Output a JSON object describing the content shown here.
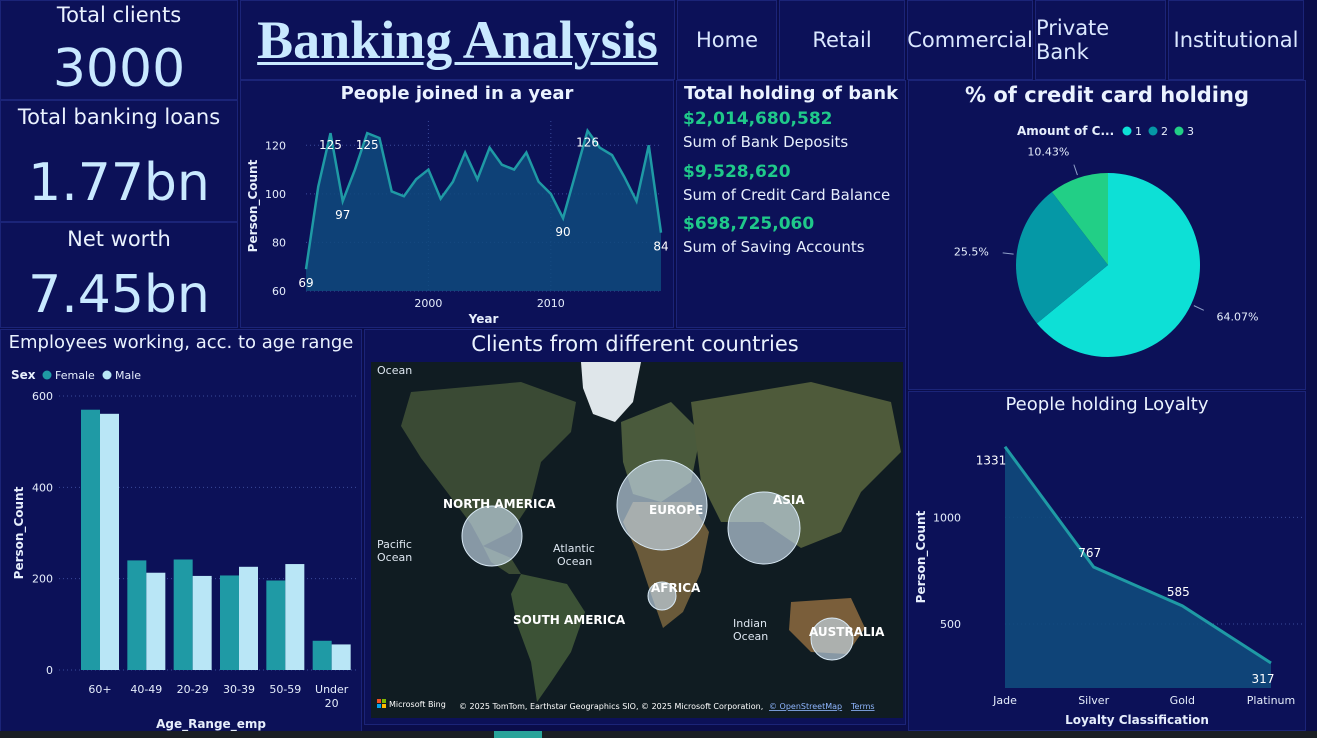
{
  "kpis": {
    "total_clients_label": "Total clients",
    "total_clients_value": "3000",
    "loans_label": "Total banking loans",
    "loans_value": "1.77bn",
    "networth_label": "Net worth",
    "networth_value": "7.45bn"
  },
  "header": {
    "title": "Banking Analysis"
  },
  "nav": [
    "Home",
    "Retail",
    "Commercial",
    "Private Bank",
    "Institutional"
  ],
  "holding": {
    "title": "Total holding of bank",
    "items": [
      {
        "value": "$2,014,680,582",
        "label": "Sum of Bank Deposits"
      },
      {
        "value": "$9,528,620",
        "label": "Sum of Credit Card Balance"
      },
      {
        "value": "$698,725,060",
        "label": "Sum of Saving Accounts"
      }
    ]
  },
  "map": {
    "title": "Clients from different countries",
    "labels": [
      "NORTH AMERICA",
      "EUROPE",
      "ASIA",
      "AFRICA",
      "SOUTH AMERICA",
      "AUSTRALIA"
    ],
    "oceans": [
      "Ocean",
      "Pacific",
      "Ocean",
      "Atlantic",
      "Ocean",
      "Indian",
      "Ocean"
    ],
    "bing": "Microsoft Bing",
    "attribution": "© 2025 TomTom, Earthstar Geographics SIO, © 2025 Microsoft Corporation,",
    "osm_link": "© OpenStreetMap",
    "terms_link": "Terms"
  },
  "colors": {
    "teal": "#1f9aa5",
    "light": "#b9e6f6",
    "area": "#0f4a7c",
    "pie1": "#0de0d6",
    "pie2": "#0598a6",
    "pie3": "#22cf86",
    "green": "#1fc98a"
  },
  "chart_data": [
    {
      "type": "area",
      "title": "People joined in a year",
      "xlabel": "Year",
      "ylabel": "Person_Count",
      "xticks": [
        "2000",
        "2010"
      ],
      "yticks": [
        "60",
        "80",
        "100",
        "120"
      ],
      "ylim": [
        60,
        130
      ],
      "x": [
        1990,
        1991,
        1992,
        1993,
        1994,
        1995,
        1996,
        1997,
        1998,
        1999,
        2000,
        2001,
        2002,
        2003,
        2004,
        2005,
        2006,
        2007,
        2008,
        2009,
        2010,
        2011,
        2012,
        2013,
        2014,
        2015,
        2016,
        2017,
        2018,
        2019
      ],
      "values": [
        69,
        103,
        125,
        97,
        110,
        125,
        123,
        101,
        99,
        106,
        110,
        98,
        105,
        117,
        106,
        119,
        112,
        110,
        117,
        105,
        100,
        90,
        108,
        126,
        119,
        116,
        107,
        97,
        120,
        84
      ],
      "labels": [
        {
          "i": 0,
          "text": "69"
        },
        {
          "i": 2,
          "text": "125"
        },
        {
          "i": 3,
          "text": "97"
        },
        {
          "i": 5,
          "text": "125"
        },
        {
          "i": 21,
          "text": "90"
        },
        {
          "i": 23,
          "text": "126"
        },
        {
          "i": 29,
          "text": "84"
        }
      ]
    },
    {
      "type": "pie",
      "title": "% of credit card holding",
      "legend_title": "Amount of C...",
      "legend_position": "top",
      "slices": [
        {
          "name": "1",
          "value": 64.07,
          "label": "64.07%"
        },
        {
          "name": "2",
          "value": 25.5,
          "label": "25.5%"
        },
        {
          "name": "3",
          "value": 10.43,
          "label": "10.43%"
        }
      ]
    },
    {
      "type": "bar",
      "title": "Employees working, acc. to age range",
      "legend_title": "Sex",
      "xlabel": "Age_Range_emp",
      "ylabel": "Person_Count",
      "categories": [
        "60+",
        "40-49",
        "20-29",
        "30-39",
        "50-59",
        "Under 20"
      ],
      "series": [
        {
          "name": "Female",
          "values": [
            570,
            240,
            242,
            207,
            196,
            64
          ]
        },
        {
          "name": "Male",
          "values": [
            561,
            213,
            206,
            226,
            232,
            56
          ]
        }
      ],
      "yticks": [
        "0",
        "200",
        "400",
        "600"
      ],
      "ylim": [
        0,
        600
      ]
    },
    {
      "type": "area",
      "title": "People holding Loyalty",
      "xlabel": "Loyalty Classification",
      "ylabel": "Person_Count",
      "categories": [
        "Jade",
        "Silver",
        "Gold",
        "Platinum"
      ],
      "values": [
        1331,
        767,
        585,
        317
      ],
      "labels": [
        "1331",
        "767",
        "585",
        "317"
      ],
      "yticks": [
        "500",
        "1000"
      ],
      "ylim": [
        200,
        1400
      ]
    }
  ]
}
